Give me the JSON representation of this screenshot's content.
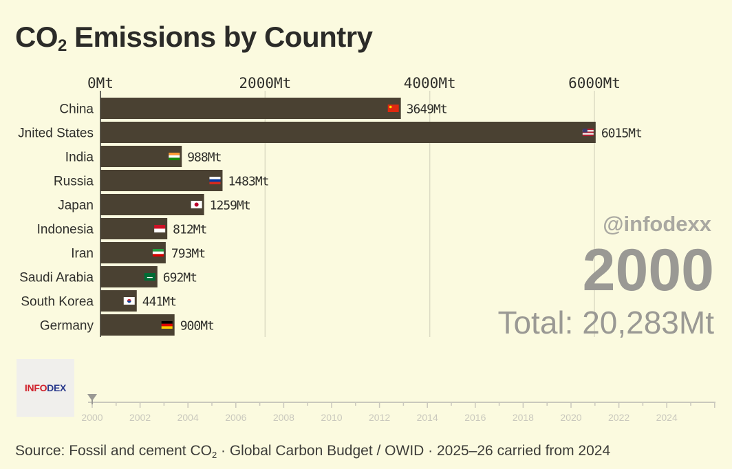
{
  "title_main": "CO",
  "title_sub": "2",
  "title_rest": " Emissions by Country",
  "chart_data": {
    "type": "bar",
    "orientation": "horizontal",
    "x_ticks": [
      0,
      2000,
      4000,
      6000
    ],
    "x_tick_labels": [
      "0Mt",
      "2000Mt",
      "4000Mt",
      "6000Mt"
    ],
    "xlim": [
      0,
      6200
    ],
    "categories": [
      "China",
      "Jnited States",
      "India",
      "Russia",
      "Japan",
      "Indonesia",
      "Iran",
      "Saudi Arabia",
      "South Korea",
      "Germany"
    ],
    "values": [
      3649,
      6015,
      988,
      1483,
      1259,
      812,
      793,
      692,
      441,
      900
    ],
    "value_labels": [
      "3649Mt",
      "6015Mt",
      "988Mt",
      "1483Mt",
      "1259Mt",
      "812Mt",
      "793Mt",
      "692Mt",
      "441Mt",
      "900Mt"
    ],
    "flags": [
      "china-flag-icon",
      "us-flag-icon",
      "india-flag-icon",
      "russia-flag-icon",
      "japan-flag-icon",
      "indonesia-flag-icon",
      "iran-flag-icon",
      "saudi-flag-icon",
      "korea-flag-icon",
      "germany-flag-icon"
    ],
    "bar_color": "#4a4132",
    "grid": true
  },
  "watermark": "@infodexx",
  "year": "2000",
  "total": "Total: 20,283Mt",
  "logo": {
    "part1": "INFO",
    "part2": "DEX"
  },
  "timeline": {
    "years": [
      2000,
      2002,
      2004,
      2006,
      2008,
      2010,
      2012,
      2014,
      2016,
      2018,
      2020,
      2022,
      2024
    ],
    "current": 2000
  },
  "source": {
    "part1": "Source: Fossil and cement CO",
    "sub": "2",
    "part2": " · Global Carbon Budget / OWID · 2025–26 carried from 2024"
  }
}
